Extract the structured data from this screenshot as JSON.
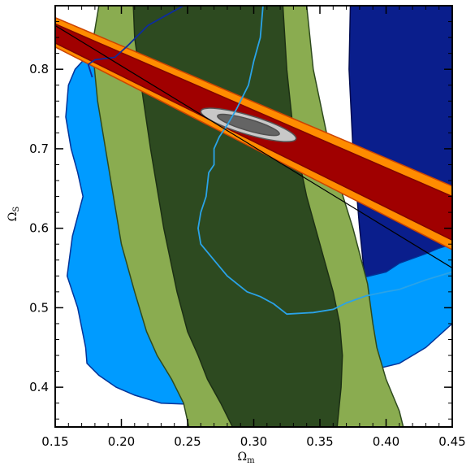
{
  "chart_data": {
    "type": "contour",
    "title": "",
    "xlabel": "Ω_m",
    "ylabel": "Ω_S",
    "xlabel_main": "Ω",
    "xlabel_sub": "m",
    "ylabel_main": "Ω",
    "ylabel_sub": "S",
    "xlim": [
      0.15,
      0.45
    ],
    "ylim": [
      0.35,
      0.88
    ],
    "x_ticks": [
      0.15,
      0.2,
      0.25,
      0.3,
      0.35,
      0.4,
      0.45
    ],
    "x_tick_labels": [
      "0.15",
      "0.20",
      "0.25",
      "0.30",
      "0.35",
      "0.40",
      "0.45"
    ],
    "y_ticks": [
      0.4,
      0.5,
      0.6,
      0.7,
      0.8
    ],
    "y_tick_labels": [
      "0.4",
      "0.5",
      "0.6",
      "0.7",
      "0.8"
    ],
    "grid": false,
    "legend": "none",
    "regions": [
      {
        "id": "navy",
        "fill": "#0a1e8c",
        "stroke": "#000a50",
        "polygon": [
          [
            0.373,
            0.88
          ],
          [
            0.45,
            0.88
          ],
          [
            0.45,
            0.58
          ],
          [
            0.44,
            0.575
          ],
          [
            0.43,
            0.568
          ],
          [
            0.41,
            0.556
          ],
          [
            0.4,
            0.545
          ],
          [
            0.39,
            0.53
          ],
          [
            0.385,
            0.52
          ],
          [
            0.38,
            0.6
          ],
          [
            0.375,
            0.7
          ],
          [
            0.372,
            0.8
          ]
        ]
      },
      {
        "id": "light-blue",
        "fill": "#009bff",
        "stroke": "#003399",
        "polygon": [
          [
            0.181,
            0.81
          ],
          [
            0.176,
            0.82
          ],
          [
            0.165,
            0.8
          ],
          [
            0.16,
            0.78
          ],
          [
            0.158,
            0.74
          ],
          [
            0.162,
            0.7
          ],
          [
            0.167,
            0.67
          ],
          [
            0.171,
            0.64
          ],
          [
            0.163,
            0.59
          ],
          [
            0.159,
            0.54
          ],
          [
            0.167,
            0.5
          ],
          [
            0.173,
            0.45
          ],
          [
            0.174,
            0.43
          ],
          [
            0.183,
            0.415
          ],
          [
            0.196,
            0.4
          ],
          [
            0.21,
            0.39
          ],
          [
            0.23,
            0.38
          ],
          [
            0.26,
            0.378
          ],
          [
            0.3,
            0.382
          ],
          [
            0.33,
            0.4
          ],
          [
            0.36,
            0.418
          ],
          [
            0.385,
            0.42
          ],
          [
            0.41,
            0.43
          ],
          [
            0.43,
            0.45
          ],
          [
            0.45,
            0.48
          ],
          [
            0.45,
            0.58
          ],
          [
            0.44,
            0.575
          ],
          [
            0.43,
            0.568
          ],
          [
            0.41,
            0.556
          ],
          [
            0.4,
            0.545
          ],
          [
            0.375,
            0.535
          ],
          [
            0.34,
            0.53
          ],
          [
            0.3,
            0.53
          ],
          [
            0.24,
            0.52
          ],
          [
            0.215,
            0.52
          ],
          [
            0.2,
            0.6
          ],
          [
            0.19,
            0.72
          ],
          [
            0.185,
            0.78
          ]
        ]
      },
      {
        "id": "green-outer",
        "fill": "#8aac50",
        "stroke": "#2e4a1e",
        "polygon": [
          [
            0.183,
            0.88
          ],
          [
            0.34,
            0.88
          ],
          [
            0.345,
            0.8
          ],
          [
            0.36,
            0.68
          ],
          [
            0.375,
            0.6
          ],
          [
            0.386,
            0.53
          ],
          [
            0.39,
            0.48
          ],
          [
            0.393,
            0.45
          ],
          [
            0.4,
            0.41
          ],
          [
            0.41,
            0.37
          ],
          [
            0.413,
            0.35
          ],
          [
            0.251,
            0.35
          ],
          [
            0.247,
            0.38
          ],
          [
            0.238,
            0.41
          ],
          [
            0.227,
            0.44
          ],
          [
            0.219,
            0.47
          ],
          [
            0.21,
            0.52
          ],
          [
            0.2,
            0.58
          ],
          [
            0.19,
            0.68
          ],
          [
            0.182,
            0.76
          ],
          [
            0.178,
            0.83
          ]
        ]
      },
      {
        "id": "green-inner",
        "fill": "#2d4a20",
        "stroke": "#1c3014",
        "polygon": [
          [
            0.209,
            0.88
          ],
          [
            0.322,
            0.88
          ],
          [
            0.325,
            0.8
          ],
          [
            0.33,
            0.72
          ],
          [
            0.34,
            0.64
          ],
          [
            0.35,
            0.58
          ],
          [
            0.36,
            0.52
          ],
          [
            0.365,
            0.48
          ],
          [
            0.367,
            0.44
          ],
          [
            0.366,
            0.4
          ],
          [
            0.363,
            0.35
          ],
          [
            0.284,
            0.35
          ],
          [
            0.275,
            0.38
          ],
          [
            0.265,
            0.41
          ],
          [
            0.258,
            0.44
          ],
          [
            0.25,
            0.47
          ],
          [
            0.242,
            0.52
          ],
          [
            0.232,
            0.6
          ],
          [
            0.222,
            0.7
          ],
          [
            0.215,
            0.78
          ],
          [
            0.21,
            0.84
          ]
        ]
      },
      {
        "id": "orange-band",
        "fill": "#ff8c00",
        "stroke": "#cc4400",
        "polygon": [
          [
            0.15,
            0.865
          ],
          [
            0.45,
            0.653
          ],
          [
            0.45,
            0.573
          ],
          [
            0.15,
            0.828
          ]
        ]
      },
      {
        "id": "red-band",
        "fill": "#a00000",
        "stroke": "#800000",
        "polygon": [
          [
            0.15,
            0.857
          ],
          [
            0.45,
            0.64
          ],
          [
            0.45,
            0.585
          ],
          [
            0.15,
            0.833
          ]
        ]
      },
      {
        "id": "gray-outer-ellipse",
        "fill": "#c8c8c8",
        "stroke": "#555555",
        "ellipse": {
          "cx": 0.296,
          "cy": 0.73,
          "rx": 0.04,
          "ry": 0.012,
          "slope": -0.49
        }
      },
      {
        "id": "gray-inner-ellipse",
        "fill": "#646464",
        "stroke": "#505050",
        "ellipse": {
          "cx": 0.296,
          "cy": 0.73,
          "rx": 0.026,
          "ry": 0.0072,
          "slope": -0.49
        }
      }
    ],
    "lines": [
      {
        "id": "blue-contour",
        "color": "#2aa3e8",
        "width": 1.8,
        "points": [
          [
            0.307,
            0.88
          ],
          [
            0.305,
            0.84
          ],
          [
            0.3,
            0.81
          ],
          [
            0.296,
            0.78
          ],
          [
            0.287,
            0.75
          ],
          [
            0.28,
            0.73
          ],
          [
            0.274,
            0.715
          ],
          [
            0.27,
            0.7
          ],
          [
            0.27,
            0.68
          ],
          [
            0.266,
            0.67
          ],
          [
            0.264,
            0.64
          ],
          [
            0.26,
            0.62
          ],
          [
            0.258,
            0.6
          ],
          [
            0.26,
            0.58
          ],
          [
            0.27,
            0.56
          ],
          [
            0.28,
            0.54
          ],
          [
            0.295,
            0.52
          ],
          [
            0.305,
            0.514
          ],
          [
            0.315,
            0.505
          ],
          [
            0.325,
            0.492
          ],
          [
            0.345,
            0.494
          ],
          [
            0.36,
            0.498
          ],
          [
            0.37,
            0.506
          ],
          [
            0.385,
            0.515
          ],
          [
            0.4,
            0.52
          ],
          [
            0.41,
            0.523
          ],
          [
            0.43,
            0.535
          ],
          [
            0.45,
            0.545
          ]
        ]
      },
      {
        "id": "navy-contour",
        "color": "#0d2c9e",
        "width": 1.8,
        "points": [
          [
            0.247,
            0.88
          ],
          [
            0.236,
            0.87
          ],
          [
            0.22,
            0.855
          ],
          [
            0.205,
            0.83
          ],
          [
            0.195,
            0.815
          ],
          [
            0.18,
            0.812
          ],
          [
            0.175,
            0.806
          ],
          [
            0.178,
            0.79
          ]
        ]
      },
      {
        "id": "black-line",
        "color": "#000000",
        "width": 1.2,
        "points": [
          [
            0.15,
            0.855
          ],
          [
            0.45,
            0.55
          ]
        ]
      }
    ]
  }
}
